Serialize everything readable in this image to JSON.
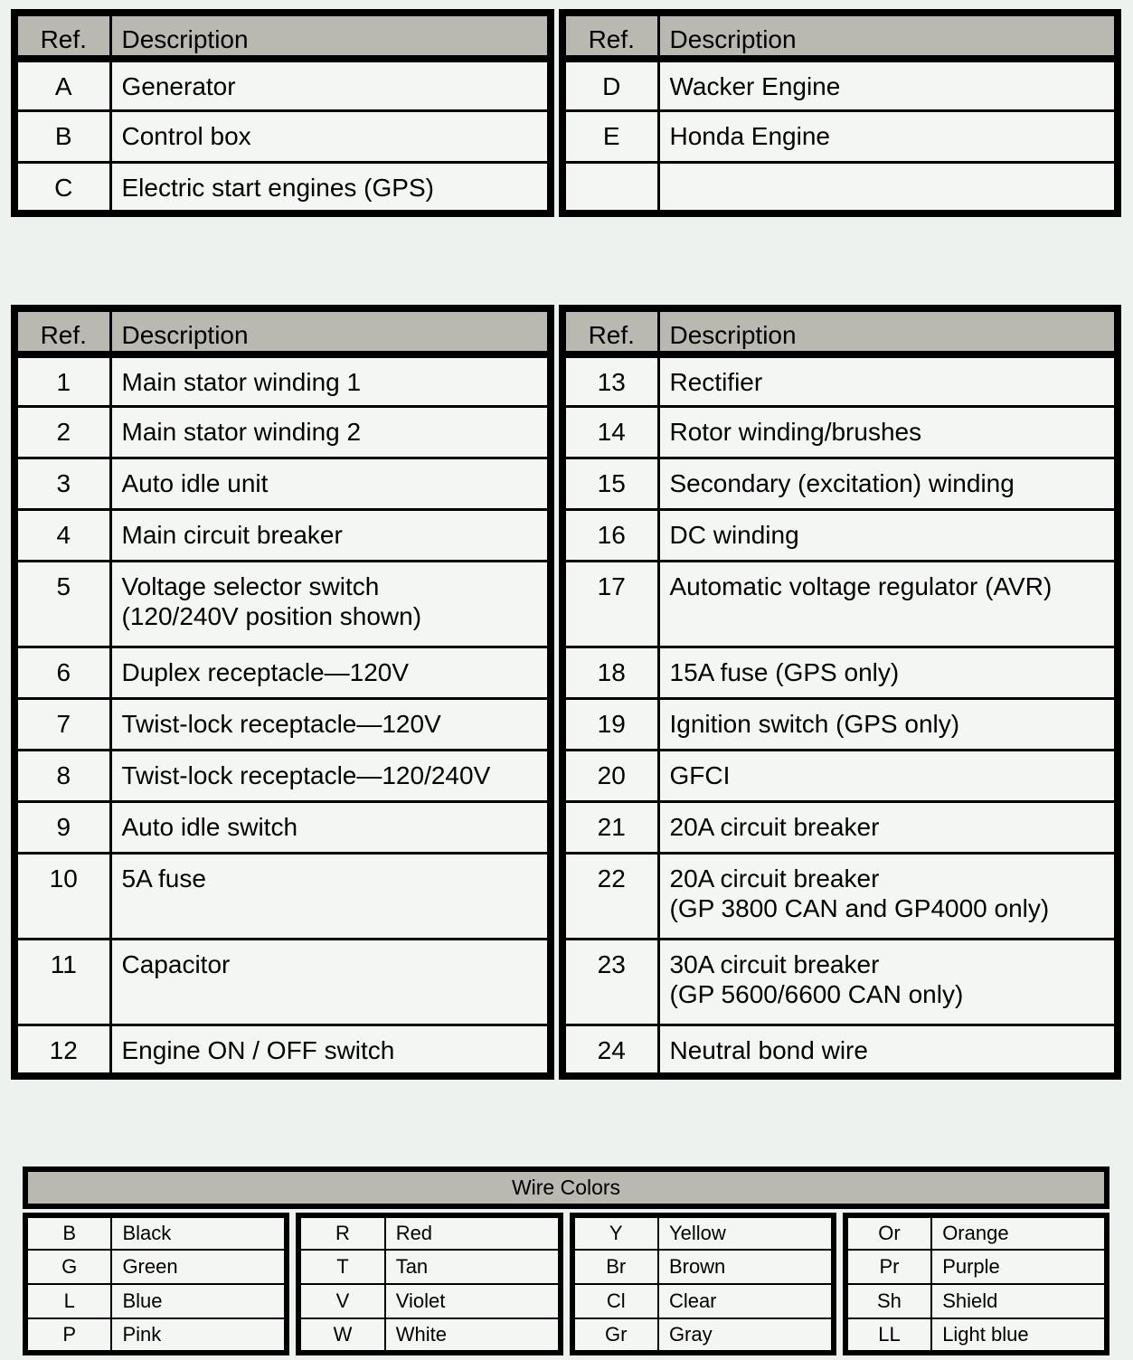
{
  "top": {
    "headers": [
      "Ref.",
      "Description"
    ],
    "left_rows": [
      [
        "A",
        "Generator"
      ],
      [
        "B",
        "Control box"
      ],
      [
        "C",
        "Electric start engines (GPS)"
      ]
    ],
    "right_rows": [
      [
        "D",
        "Wacker Engine"
      ],
      [
        "E",
        "Honda Engine"
      ],
      [
        "",
        ""
      ]
    ]
  },
  "main": {
    "headers": [
      "Ref.",
      "Description"
    ],
    "left_rows": [
      [
        "1",
        "Main stator winding 1"
      ],
      [
        "2",
        "Main stator winding 2"
      ],
      [
        "3",
        "Auto idle unit"
      ],
      [
        "4",
        "Main circuit breaker"
      ],
      [
        "5",
        "Voltage selector switch\n(120/240V position shown)"
      ],
      [
        "6",
        "Duplex receptacle—120V"
      ],
      [
        "7",
        "Twist-lock receptacle—120V"
      ],
      [
        "8",
        "Twist-lock receptacle—120/240V"
      ],
      [
        "9",
        "Auto idle switch"
      ],
      [
        "10",
        "5A fuse"
      ],
      [
        "11",
        "Capacitor"
      ],
      [
        "12",
        "Engine ON / OFF switch"
      ]
    ],
    "right_rows": [
      [
        "13",
        "Rectifier"
      ],
      [
        "14",
        "Rotor winding/brushes"
      ],
      [
        "15",
        "Secondary (excitation) winding"
      ],
      [
        "16",
        "DC winding"
      ],
      [
        "17",
        "Automatic voltage regulator (AVR)"
      ],
      [
        "18",
        "15A fuse (GPS only)"
      ],
      [
        "19",
        "Ignition switch (GPS only)"
      ],
      [
        "20",
        "GFCI"
      ],
      [
        "21",
        "20A circuit breaker"
      ],
      [
        "22",
        "20A circuit breaker\n(GP 3800 CAN and GP4000 only)"
      ],
      [
        "23",
        "30A circuit breaker\n(GP 5600/6600 CAN only)"
      ],
      [
        "24",
        "Neutral bond wire"
      ]
    ]
  },
  "wire_colors": {
    "title": "Wire Colors",
    "groups": [
      [
        [
          "B",
          "Black"
        ],
        [
          "G",
          "Green"
        ],
        [
          "L",
          "Blue"
        ],
        [
          "P",
          "Pink"
        ]
      ],
      [
        [
          "R",
          "Red"
        ],
        [
          "T",
          "Tan"
        ],
        [
          "V",
          "Violet"
        ],
        [
          "W",
          "White"
        ]
      ],
      [
        [
          "Y",
          "Yellow"
        ],
        [
          "Br",
          "Brown"
        ],
        [
          "Cl",
          "Clear"
        ],
        [
          "Gr",
          "Gray"
        ]
      ],
      [
        [
          "Or",
          "Orange"
        ],
        [
          "Pr",
          "Purple"
        ],
        [
          "Sh",
          "Shield"
        ],
        [
          "LL",
          "Light blue"
        ]
      ]
    ]
  },
  "colors": {
    "header_bg": "#b9b9b2",
    "cell_bg": "#f3f6f2",
    "page_bg": "#eef2ee",
    "border": "#000000"
  }
}
